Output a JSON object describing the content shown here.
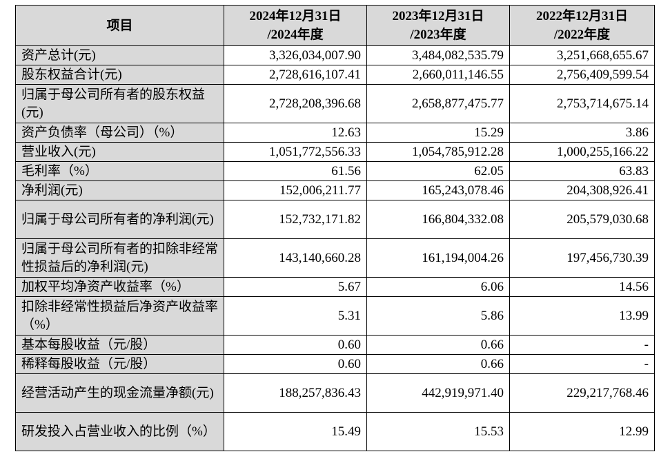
{
  "header": {
    "item": "项目",
    "columns": [
      {
        "line1": "2024年12月31日",
        "line2": "/2024年度"
      },
      {
        "line1": "2023年12月31日",
        "line2": "/2023年度"
      },
      {
        "line1": "2022年12月31日",
        "line2": "/2022年度"
      }
    ]
  },
  "rows": [
    {
      "label": "资产总计(元)",
      "values": [
        "3,326,034,007.90",
        "3,484,082,535.79",
        "3,251,668,655.67"
      ]
    },
    {
      "label": "股东权益合计(元)",
      "values": [
        "2,728,616,107.41",
        "2,660,011,146.55",
        "2,756,409,599.54"
      ]
    },
    {
      "label": "归属于母公司所有者的股东权益(元)",
      "values": [
        "2,728,208,396.68",
        "2,658,877,475.77",
        "2,753,714,675.14"
      ]
    },
    {
      "label": "资产负债率（母公司）（%）",
      "values": [
        "12.63",
        "15.29",
        "3.86"
      ]
    },
    {
      "label": "营业收入(元)",
      "values": [
        "1,051,772,556.33",
        "1,054,785,912.28",
        "1,000,255,166.22"
      ]
    },
    {
      "label": "毛利率（%）",
      "values": [
        "61.56",
        "62.05",
        "63.83"
      ]
    },
    {
      "label": "净利润(元)",
      "values": [
        "152,006,211.77",
        "165,243,078.46",
        "204,308,926.41"
      ]
    },
    {
      "label": "归属于母公司所有者的净利润(元)",
      "values": [
        "152,732,171.82",
        "166,804,332.08",
        "205,579,030.68"
      ]
    },
    {
      "label": "归属于母公司所有者的扣除非经常性损益后的净利润(元)",
      "values": [
        "143,140,660.28",
        "161,194,004.26",
        "197,456,730.39"
      ]
    },
    {
      "label": "加权平均净资产收益率（%）",
      "values": [
        "5.67",
        "6.06",
        "14.56"
      ]
    },
    {
      "label": "扣除非经常性损益后净资产收益率（%）",
      "values": [
        "5.31",
        "5.86",
        "13.99"
      ]
    },
    {
      "label": "基本每股收益（元/股）",
      "values": [
        "0.60",
        "0.66",
        "-"
      ]
    },
    {
      "label": "稀释每股收益（元/股）",
      "values": [
        "0.60",
        "0.66",
        "-"
      ]
    },
    {
      "label": "经营活动产生的现金流量净额(元)",
      "values": [
        "188,257,836.43",
        "442,919,971.40",
        "229,217,768.46"
      ]
    },
    {
      "label": "研发投入占营业收入的比例（%）",
      "values": [
        "15.49",
        "15.53",
        "12.99"
      ]
    }
  ]
}
